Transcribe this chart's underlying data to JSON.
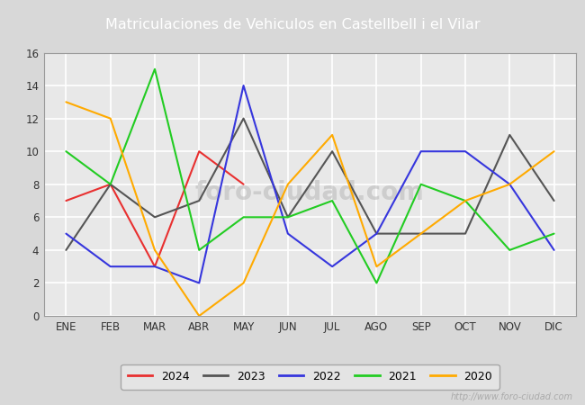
{
  "title": "Matriculaciones de Vehiculos en Castellbell i el Vilar",
  "title_bg_color": "#5b8ed6",
  "title_text_color": "#ffffff",
  "months": [
    "ENE",
    "FEB",
    "MAR",
    "ABR",
    "MAY",
    "JUN",
    "JUL",
    "AGO",
    "SEP",
    "OCT",
    "NOV",
    "DIC"
  ],
  "series": {
    "2024": {
      "color": "#e83030",
      "values": [
        7,
        8,
        3,
        10,
        8,
        null,
        null,
        null,
        null,
        null,
        null,
        null
      ]
    },
    "2023": {
      "color": "#555555",
      "values": [
        4,
        8,
        6,
        7,
        12,
        6,
        10,
        5,
        5,
        5,
        11,
        7
      ]
    },
    "2022": {
      "color": "#3636dd",
      "values": [
        5,
        3,
        3,
        2,
        14,
        5,
        3,
        5,
        10,
        10,
        8,
        4
      ]
    },
    "2021": {
      "color": "#22cc22",
      "values": [
        10,
        8,
        15,
        4,
        6,
        6,
        7,
        2,
        8,
        7,
        4,
        5
      ]
    },
    "2020": {
      "color": "#ffaa00",
      "values": [
        13,
        12,
        4,
        0,
        2,
        8,
        11,
        3,
        5,
        7,
        8,
        10
      ]
    }
  },
  "ylim": [
    0,
    16
  ],
  "yticks": [
    0,
    2,
    4,
    6,
    8,
    10,
    12,
    14,
    16
  ],
  "outer_bg_color": "#d8d8d8",
  "plot_bg_color": "#e8e8e8",
  "grid_color": "#ffffff",
  "watermark": "http://www.foro-ciudad.com",
  "legend_order": [
    "2024",
    "2023",
    "2022",
    "2021",
    "2020"
  ]
}
